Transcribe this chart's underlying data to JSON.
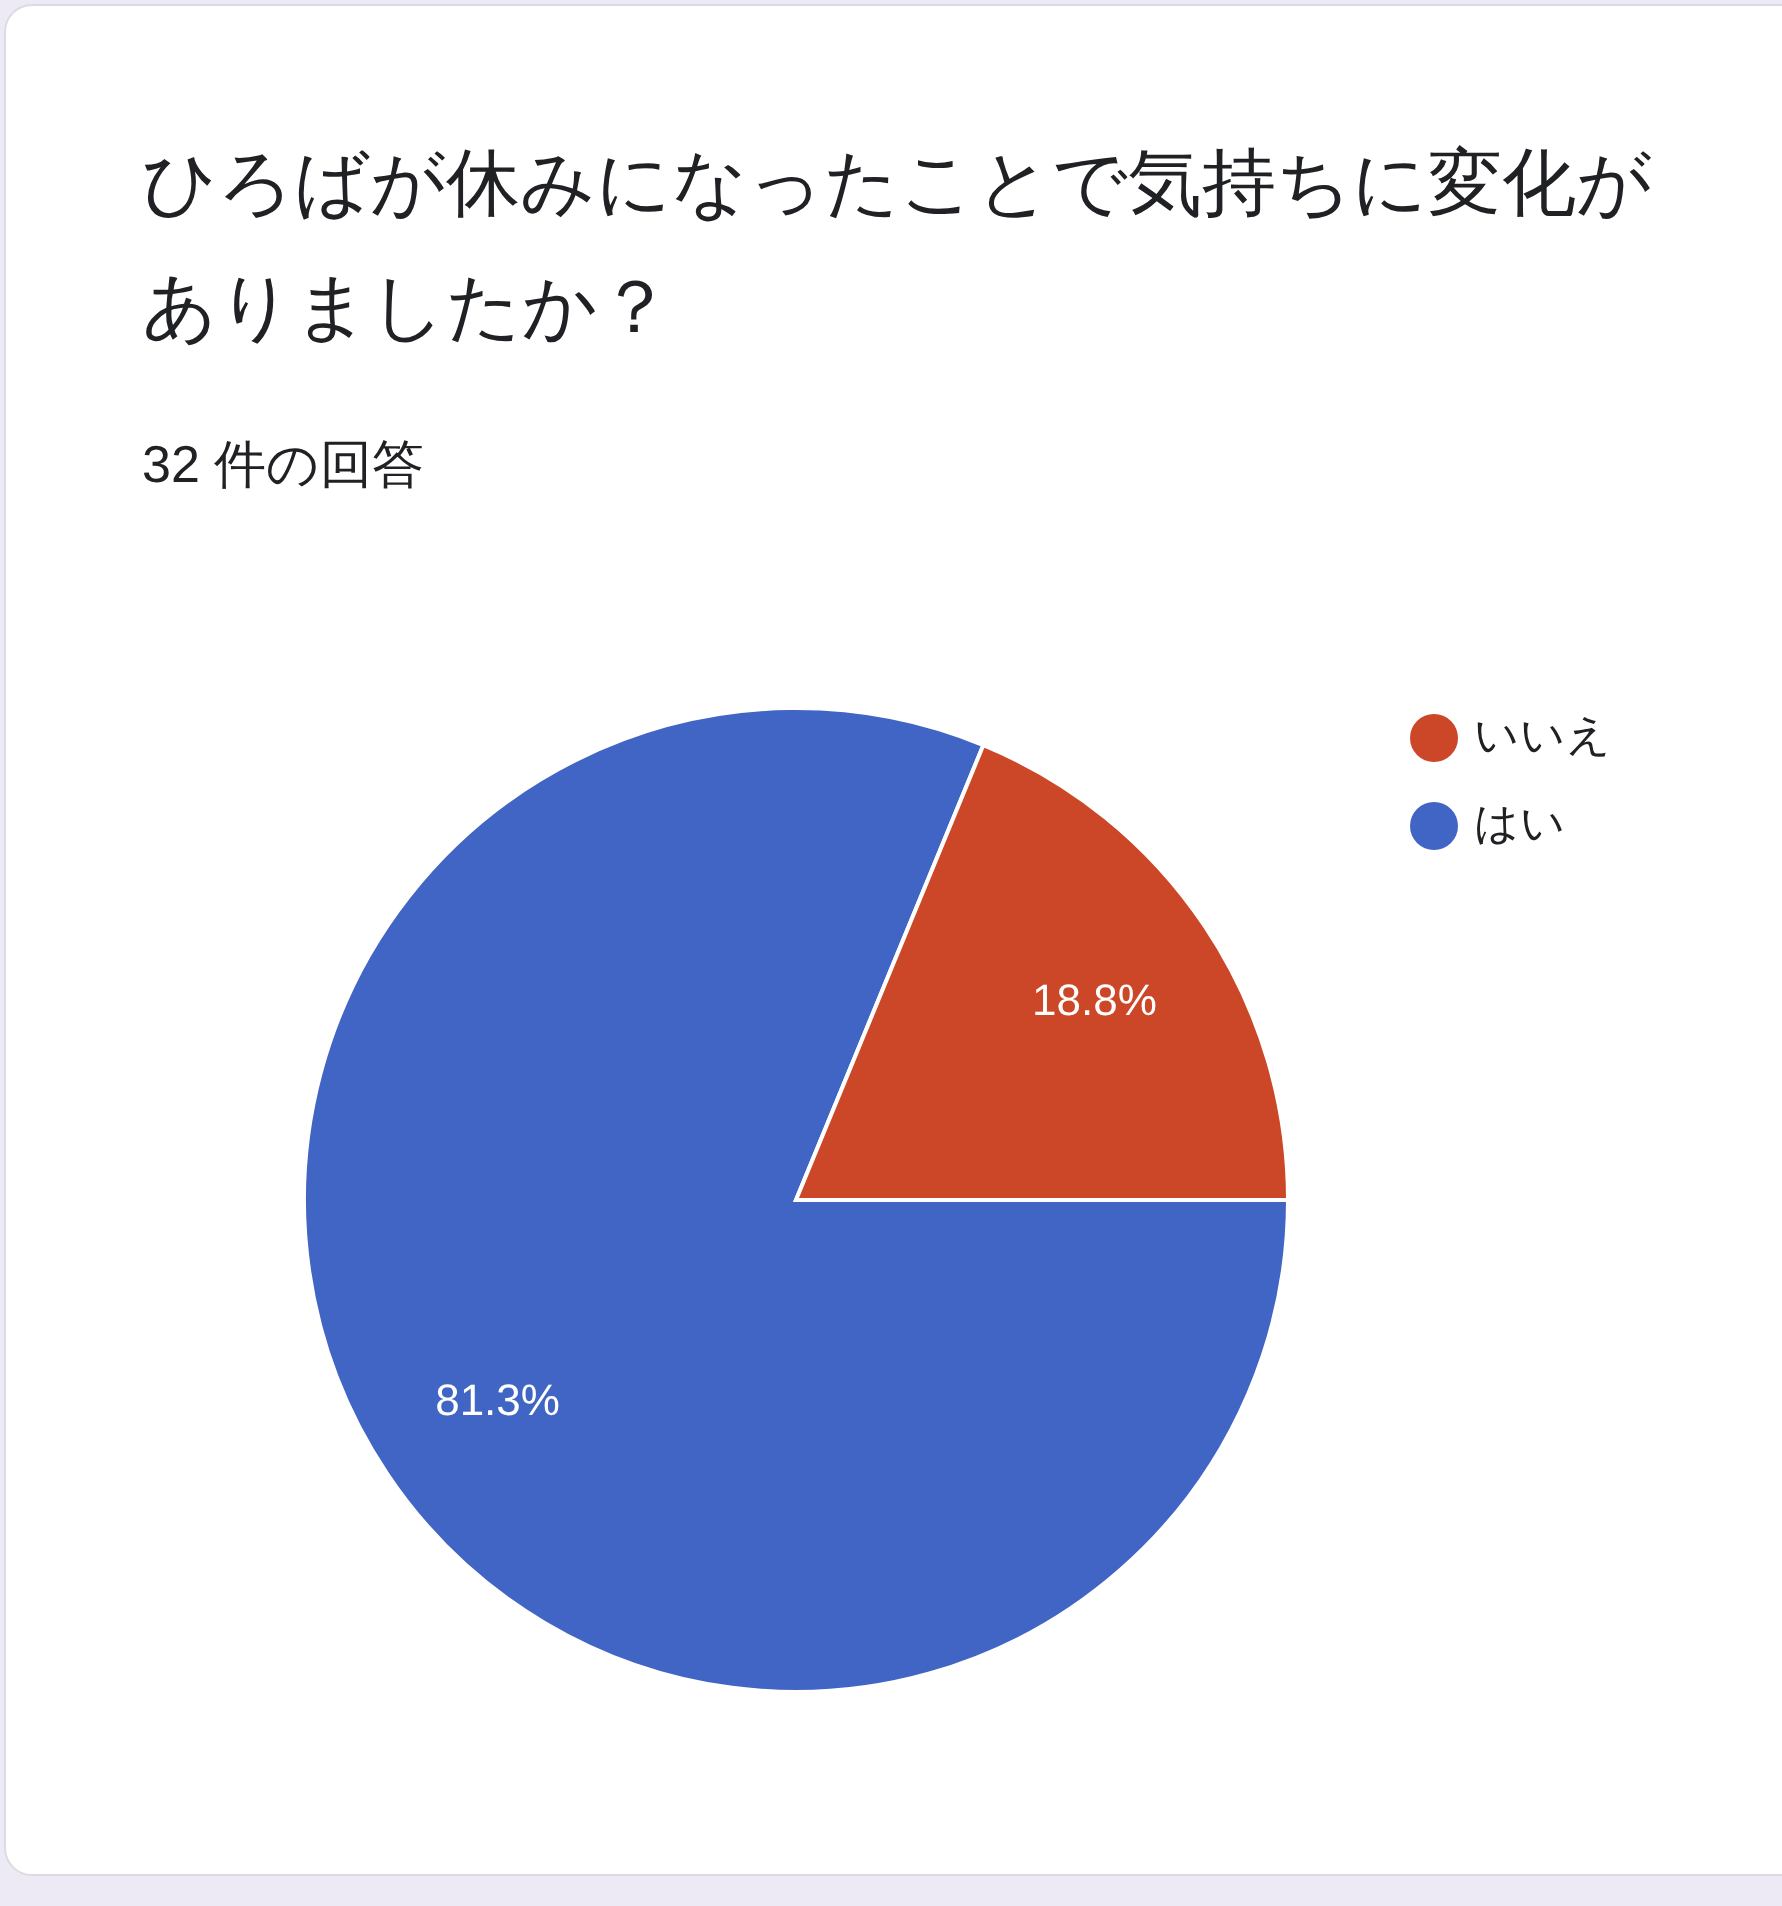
{
  "chart_data": {
    "type": "pie",
    "title": "ひろばが休みになったことで気持ちに変化がありましたか？",
    "subtitle": "32 件の回答",
    "categories": [
      "はい",
      "いいえ"
    ],
    "values": [
      81.3,
      18.8
    ],
    "colors": [
      "#4065c4",
      "#cb4727"
    ],
    "value_labels": [
      "81.3%",
      "18.8%"
    ],
    "legend": "top right"
  }
}
